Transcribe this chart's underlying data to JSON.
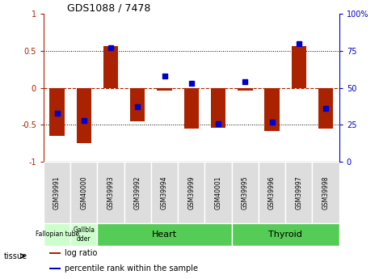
{
  "title": "GDS1088 / 7478",
  "samples": [
    "GSM39991",
    "GSM40000",
    "GSM39993",
    "GSM39992",
    "GSM39994",
    "GSM39999",
    "GSM40001",
    "GSM39995",
    "GSM39996",
    "GSM39997",
    "GSM39998"
  ],
  "log_ratios": [
    -0.65,
    -0.75,
    0.57,
    -0.45,
    -0.04,
    -0.55,
    -0.54,
    -0.04,
    -0.58,
    0.57,
    -0.55
  ],
  "percentile_ranks": [
    33,
    28,
    77,
    37,
    58,
    53,
    26,
    54,
    27,
    80,
    36
  ],
  "tissues": [
    {
      "label": "Fallopian tube",
      "start": 0,
      "end": 2,
      "color": "#ccffcc"
    },
    {
      "label": "Gallbla\ndder",
      "start": 1,
      "end": 2,
      "color": "#ccffcc"
    },
    {
      "label": "Heart",
      "start": 2,
      "end": 7,
      "color": "#66dd66"
    },
    {
      "label": "Thyroid",
      "start": 7,
      "end": 11,
      "color": "#66dd66"
    }
  ],
  "bar_color": "#aa2200",
  "dot_color": "#0000cc",
  "ylim": [
    -1,
    1
  ],
  "y2lim": [
    0,
    100
  ],
  "yticks": [
    -1,
    -0.5,
    0,
    0.5,
    1
  ],
  "y2ticks": [
    0,
    25,
    50,
    75,
    100
  ],
  "dotted_lines": [
    -0.5,
    0.5
  ],
  "sample_box_color": "#dddddd",
  "legend_items": [
    {
      "color": "#aa2200",
      "label": "log ratio"
    },
    {
      "color": "#0000cc",
      "label": "percentile rank within the sample"
    }
  ]
}
